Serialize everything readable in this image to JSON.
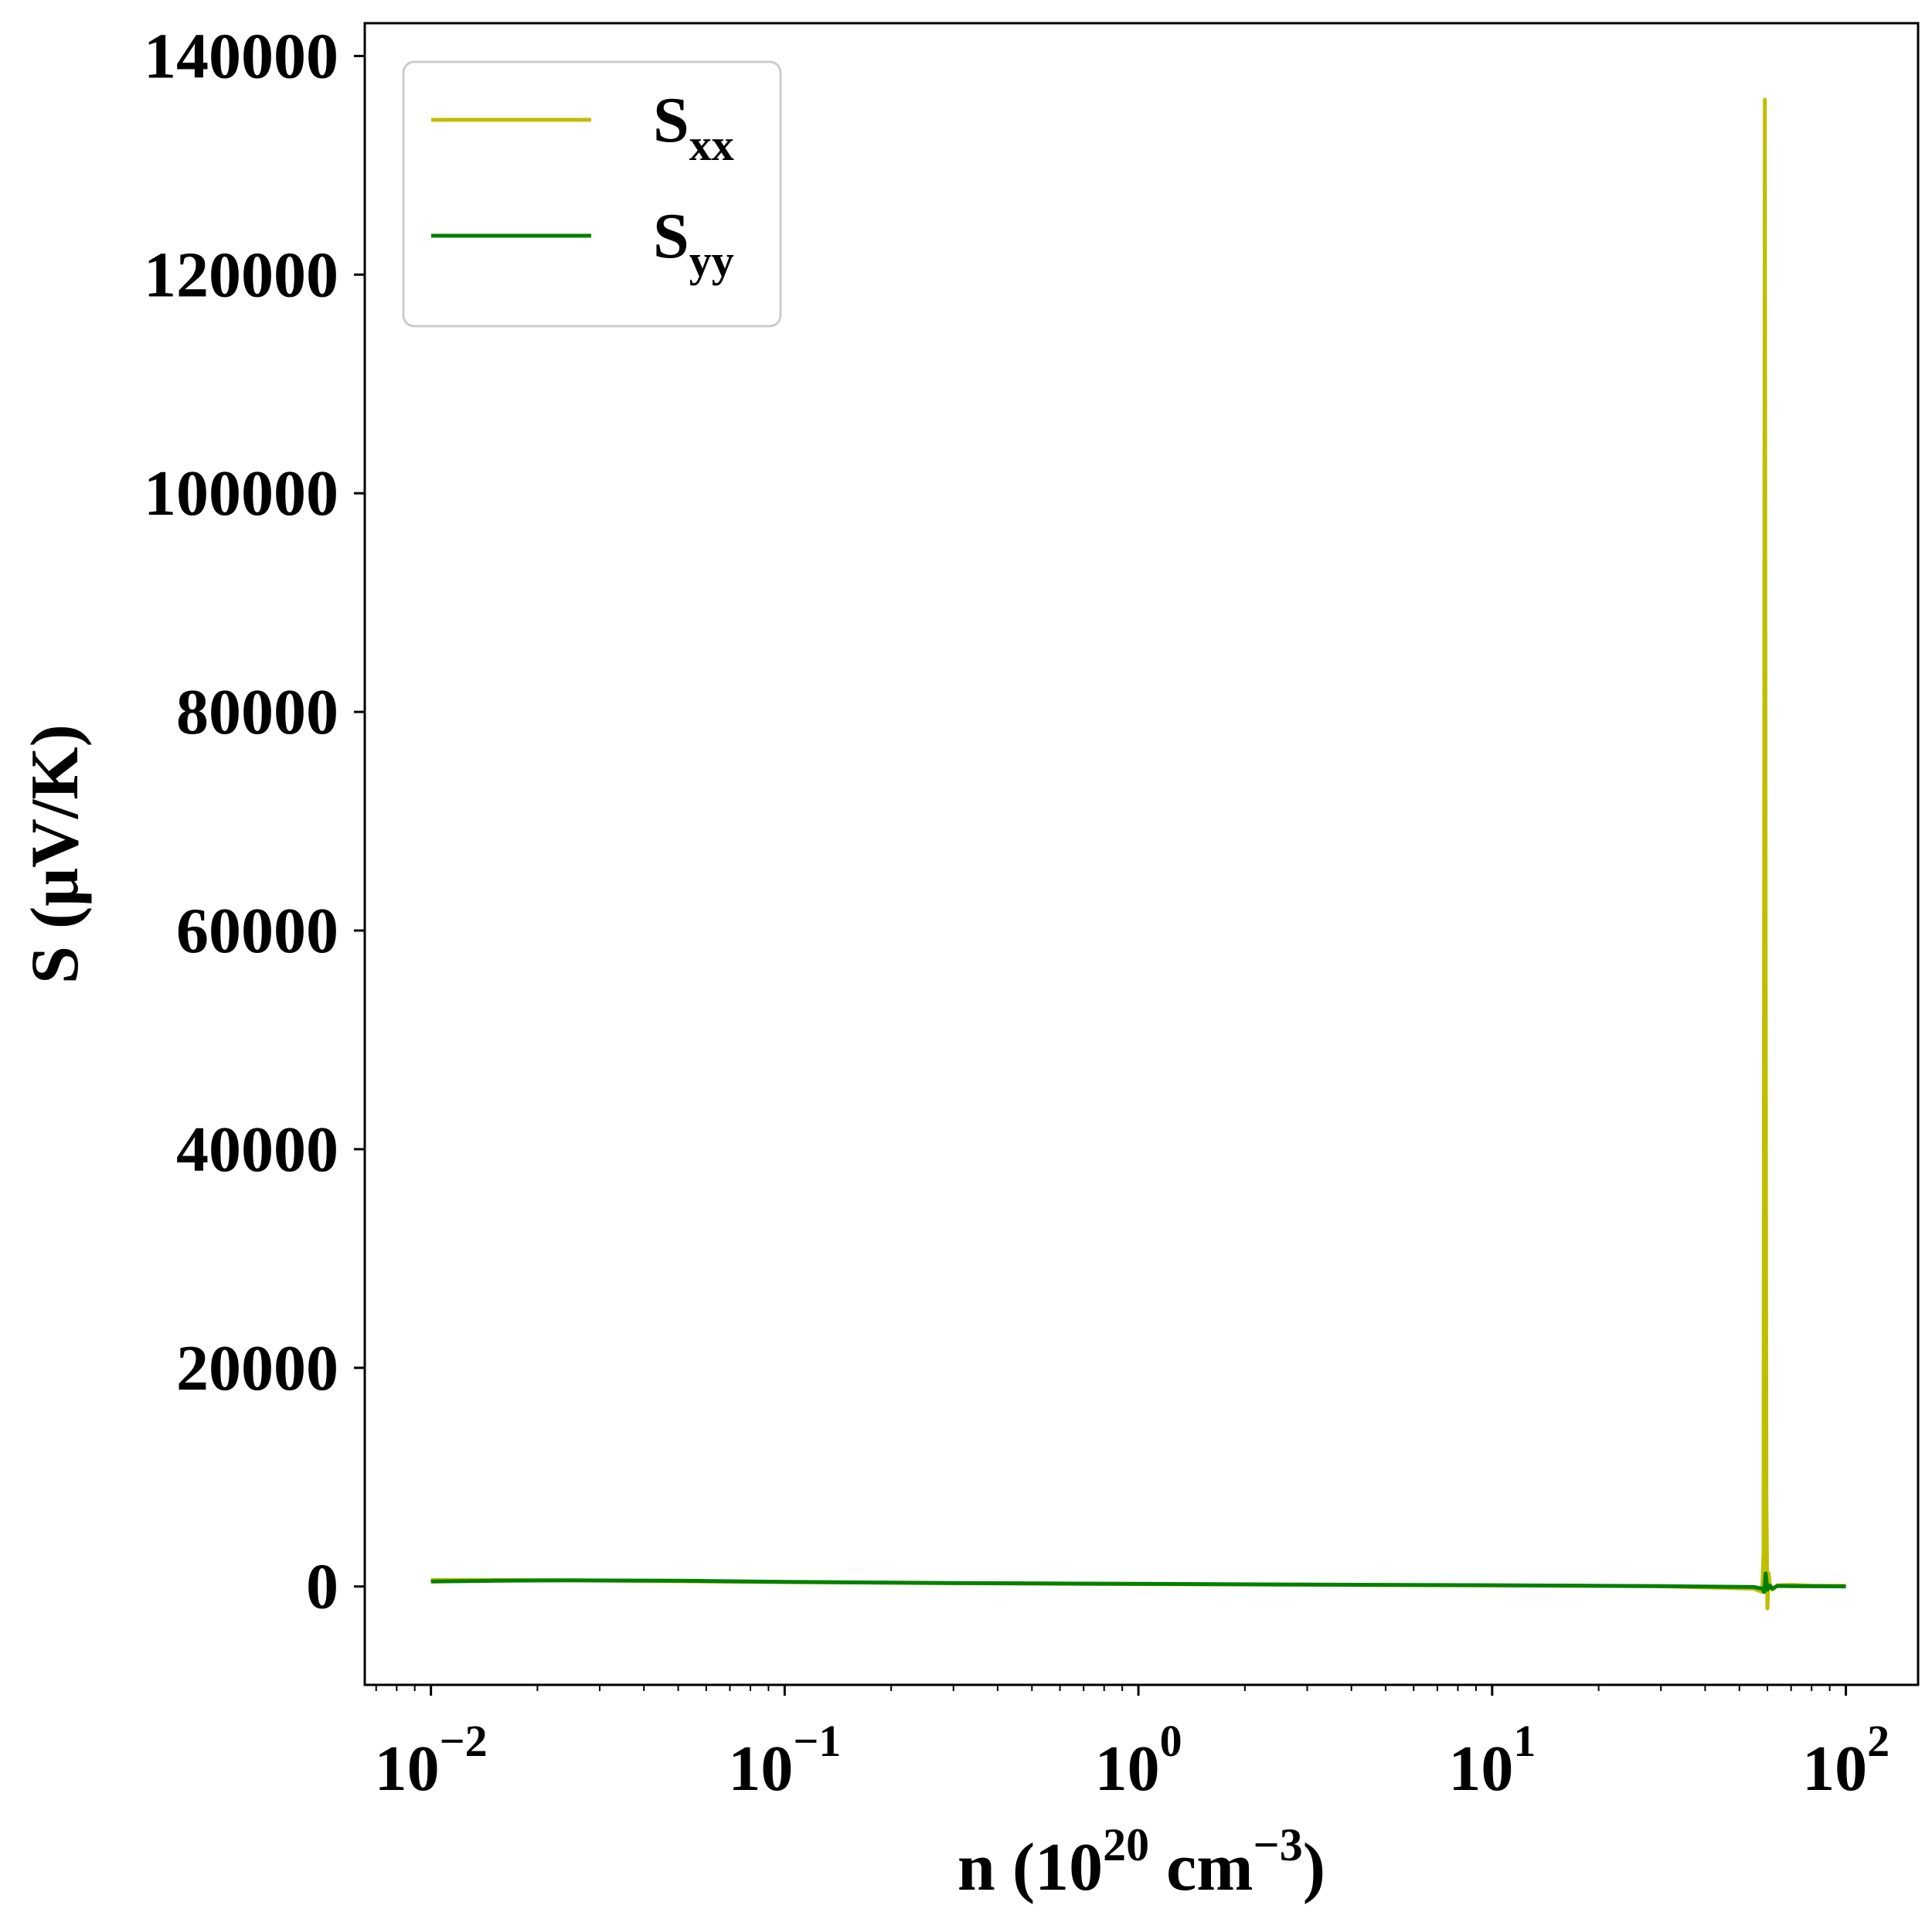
{
  "chart_data": {
    "type": "line",
    "xscale": "log",
    "xlim": [
      0.0065,
      160
    ],
    "ylim": [
      -9000,
      143000
    ],
    "yticks": [
      0,
      20000,
      40000,
      60000,
      80000,
      100000,
      120000,
      140000
    ],
    "ytick_labels": [
      "0",
      "20000",
      "40000",
      "60000",
      "80000",
      "100000",
      "120000",
      "140000"
    ],
    "xticks": [
      0.01,
      0.1,
      1,
      10,
      100
    ],
    "xtick_labels": [
      {
        "base": "10",
        "exp": "−2"
      },
      {
        "base": "10",
        "exp": "−1"
      },
      {
        "base": "10",
        "exp": "0"
      },
      {
        "base": "10",
        "exp": "1"
      },
      {
        "base": "10",
        "exp": "2"
      }
    ],
    "xlabel": {
      "prefix": "n (10",
      "sup1": "20",
      "mid": " cm",
      "sup2": "−3",
      "suffix": ")"
    },
    "ylabel": "S (μV/K)",
    "legend": {
      "placement": "top-left"
    },
    "series": [
      {
        "name": "S",
        "name_sub": "xx",
        "color": "#bfbf00",
        "x": [
          0.01,
          0.015,
          0.025,
          0.05,
          0.1,
          0.3,
          1,
          3,
          10,
          30,
          55,
          58,
          58.5,
          59,
          59.3,
          59.6,
          60,
          60.5,
          61,
          62,
          64,
          70,
          80,
          100
        ],
        "y": [
          600,
          600,
          560,
          480,
          400,
          300,
          220,
          160,
          100,
          20,
          -200,
          -500,
          3000,
          136000,
          60000,
          8000,
          -2000,
          1200,
          0,
          -300,
          100,
          150,
          80,
          50
        ]
      },
      {
        "name": "S",
        "name_sub": "yy",
        "color": "#008000",
        "x": [
          0.01,
          0.015,
          0.025,
          0.05,
          0.1,
          0.3,
          1,
          3,
          10,
          30,
          55,
          58,
          58.8,
          59.3,
          60,
          61,
          62,
          64,
          70,
          80,
          100
        ],
        "y": [
          450,
          520,
          560,
          520,
          420,
          320,
          240,
          170,
          110,
          30,
          -50,
          -200,
          -500,
          1200,
          -300,
          80,
          -200,
          50,
          30,
          20,
          10
        ]
      }
    ]
  }
}
